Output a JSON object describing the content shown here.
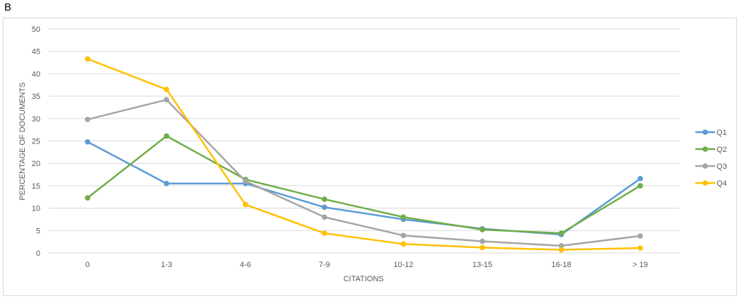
{
  "panel_label": "B",
  "chart_data": {
    "type": "line",
    "title": "",
    "xlabel": "CITATIONS",
    "ylabel": "PERCENTAGE OF DOCUMENTS",
    "ylim": [
      0,
      50
    ],
    "yticks": [
      0,
      5,
      10,
      15,
      20,
      25,
      30,
      35,
      40,
      45,
      50
    ],
    "grid": true,
    "legend": "right",
    "categories": [
      "0",
      "1-3",
      "4-6",
      "7-9",
      "10-12",
      "13-15",
      "16-18",
      "> 19"
    ],
    "series": [
      {
        "name": "Q1",
        "color": "#5b9bd5",
        "values": [
          24.8,
          15.5,
          15.5,
          10.2,
          7.5,
          5.4,
          4.1,
          16.6
        ]
      },
      {
        "name": "Q2",
        "color": "#70ad47",
        "values": [
          12.3,
          26.1,
          16.4,
          12.0,
          8.0,
          5.2,
          4.4,
          15.0
        ]
      },
      {
        "name": "Q3",
        "color": "#a5a5a5",
        "values": [
          29.8,
          34.2,
          16.0,
          8.0,
          3.9,
          2.6,
          1.6,
          3.8
        ]
      },
      {
        "name": "Q4",
        "color": "#ffc000",
        "values": [
          43.3,
          36.5,
          10.8,
          4.4,
          2.0,
          1.2,
          0.7,
          1.1
        ]
      }
    ]
  }
}
